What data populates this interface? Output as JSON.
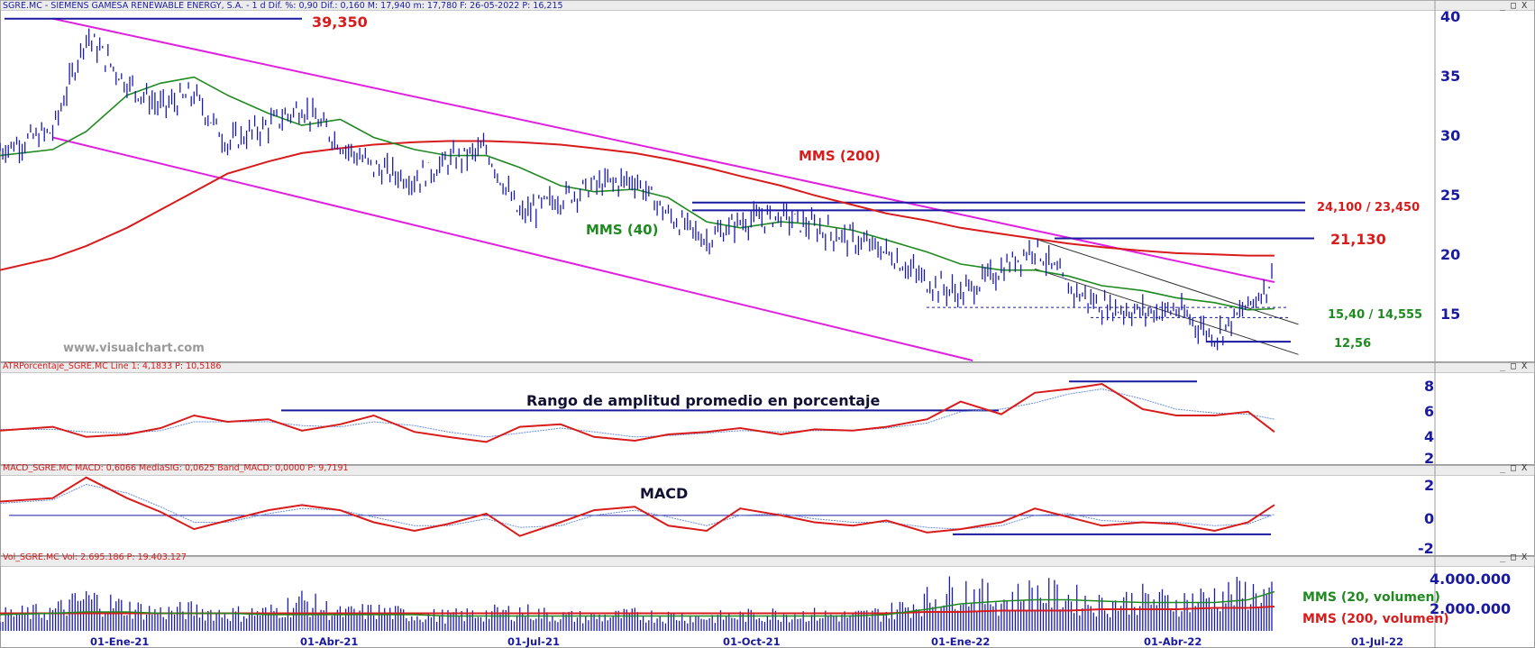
{
  "panels": {
    "price": {
      "header": "SGRE.MC - SIEMENS GAMESA RENEWABLE ENERGY, S.A. - 1 d  Dif. %: 0,90  Dif.: 0,160  M: 17,940  m: 17,780  F: 26-05-2022  P: 16,215",
      "y_ticks": [
        "40",
        "35",
        "30",
        "25",
        "20",
        "15"
      ],
      "watermark": "www.visualchart.com"
    },
    "atr": {
      "header": "ATRPorcentaje_SGRE.MC  Line 1: 4,1833  P: 10,5186",
      "y_ticks": [
        "8",
        "6",
        "4",
        "2"
      ],
      "title": "Rango de amplitud promedio en porcentaje"
    },
    "macd": {
      "header": "MACD_SGRE.MC  MACD: 0,6066  MediaSIG: 0,0625  Band_MACD: 0,0000  P: 9,7191",
      "y_ticks": [
        "2",
        "0",
        "-2"
      ],
      "title": "MACD"
    },
    "volume": {
      "header": "Vol_SGRE.MC  Vol: 2.695.186  P: 19.403.127",
      "y_ticks": [
        "4.000.000",
        "2.000.000"
      ]
    }
  },
  "x_axis": [
    "01-Ene-21",
    "01-Abr-21",
    "01-Jul-21",
    "01-Oct-21",
    "01-Ene-22",
    "01-Abr-22",
    "01-Jul-22"
  ],
  "annotations": {
    "max_level": "39,350",
    "mms200": "MMS (200)",
    "mms40": "MMS (40)",
    "resistance_band": "24,100 / 23,450",
    "resistance": "21,130",
    "support_band": "15,40 / 14,555",
    "low": "12,56",
    "vol_mms20": "MMS (20, volumen)",
    "vol_mms200": "MMS (200, volumen)"
  },
  "window_buttons": "_ □ X",
  "colors": {
    "price_bars": "#1a1ab4",
    "mms40": "#1f8a1f",
    "mms200": "#d81b1b",
    "channel": "#e020e0",
    "levels": "#1a1aa0",
    "atr_line": "#d81b1b",
    "atr_signal": "#6b8fd6",
    "macd_line": "#d81b1b",
    "macd_signal": "#6b8fd6",
    "volume_bars": "#1a1ab4",
    "axis_text": "#1a1aa0",
    "annotation_red": "#d81b1b",
    "annotation_green": "#1f8a1f"
  },
  "chart_data": {
    "type": "line",
    "title": "",
    "instrument": "SGRE.MC",
    "x": [
      "2020-12-10",
      "2021-01-01",
      "2021-01-15",
      "2021-02-01",
      "2021-02-15",
      "2021-03-01",
      "2021-03-15",
      "2021-04-01",
      "2021-04-15",
      "2021-05-01",
      "2021-05-15",
      "2021-06-01",
      "2021-06-15",
      "2021-07-01",
      "2021-07-15",
      "2021-08-01",
      "2021-08-15",
      "2021-09-01",
      "2021-09-15",
      "2021-10-01",
      "2021-10-15",
      "2021-11-01",
      "2021-11-15",
      "2021-12-01",
      "2021-12-15",
      "2022-01-01",
      "2022-01-15",
      "2022-02-01",
      "2022-02-15",
      "2022-03-01",
      "2022-03-15",
      "2022-04-01",
      "2022-04-15",
      "2022-05-01",
      "2022-05-15",
      "2022-05-26"
    ],
    "series": [
      {
        "name": "SGRE.MC",
        "values": [
          28.5,
          30.0,
          38.0,
          34.0,
          32.0,
          33.0,
          29.0,
          30.5,
          32.0,
          29.0,
          27.0,
          26.0,
          27.5,
          28.5,
          23.0,
          24.5,
          25.5,
          26.0,
          23.0,
          21.0,
          22.5,
          23.0,
          22.0,
          21.0,
          20.0,
          17.5,
          16.5,
          18.5,
          20.5,
          17.0,
          15.5,
          15.0,
          15.2,
          13.0,
          15.5,
          17.9
        ]
      },
      {
        "name": "MMS (40)",
        "values": [
          28.0,
          28.5,
          30.0,
          33.0,
          34.0,
          34.5,
          33.0,
          31.5,
          30.5,
          31.0,
          29.5,
          28.5,
          28.0,
          28.0,
          27.0,
          25.5,
          25.0,
          25.2,
          24.5,
          22.5,
          22.0,
          22.5,
          22.3,
          21.8,
          21.0,
          20.0,
          19.0,
          18.5,
          18.5,
          18.0,
          17.2,
          16.8,
          16.2,
          15.8,
          15.2,
          15.3
        ]
      },
      {
        "name": "MMS (200)",
        "values": [
          18.5,
          19.5,
          20.5,
          22.0,
          23.5,
          25.0,
          26.5,
          27.5,
          28.2,
          28.6,
          28.9,
          29.1,
          29.2,
          29.2,
          29.1,
          28.9,
          28.6,
          28.2,
          27.7,
          27.0,
          26.3,
          25.5,
          24.7,
          23.9,
          23.2,
          22.6,
          22.0,
          21.5,
          21.1,
          20.7,
          20.4,
          20.1,
          19.9,
          19.8,
          19.7,
          19.7
        ]
      }
    ],
    "ylim": [
      11,
      40
    ],
    "yticks": [
      15,
      20,
      25,
      30,
      35,
      40
    ],
    "levels": [
      39.35,
      24.1,
      23.45,
      21.13,
      15.4,
      14.555,
      12.56
    ],
    "sub_panels": [
      {
        "name": "ATRPorcentaje_SGRE.MC",
        "type": "line",
        "ylim": [
          2,
          9
        ],
        "yticks": [
          2,
          4,
          6,
          8
        ],
        "series": [
          {
            "name": "Line 1",
            "values": [
              4.3,
              4.6,
              3.8,
              4.0,
              4.5,
              5.5,
              5.0,
              5.2,
              4.3,
              4.8,
              5.5,
              4.2,
              3.8,
              3.4,
              4.6,
              4.8,
              3.8,
              3.5,
              4.0,
              4.2,
              4.5,
              4.0,
              4.4,
              4.3,
              4.6,
              5.2,
              6.6,
              5.6,
              7.3,
              7.6,
              8.0,
              6.0,
              5.5,
              5.5,
              5.8,
              4.2
            ]
          },
          {
            "values": [
              4.4,
              4.4,
              4.2,
              4.1,
              4.3,
              5.0,
              5.0,
              5.0,
              4.7,
              4.6,
              5.0,
              4.7,
              4.2,
              3.8,
              4.1,
              4.5,
              4.2,
              3.8,
              3.9,
              4.1,
              4.3,
              4.2,
              4.3,
              4.3,
              4.5,
              4.9,
              5.8,
              6.0,
              6.5,
              7.2,
              7.6,
              6.8,
              6.0,
              5.7,
              5.6,
              5.2
            ]
          }
        ]
      },
      {
        "name": "MACD_SGRE.MC",
        "type": "line",
        "ylim": [
          -2,
          2.4
        ],
        "yticks": [
          -2,
          0,
          2
        ],
        "levels": [
          0
        ],
        "series": [
          {
            "name": "MACD",
            "values": [
              0.8,
              1.0,
              2.2,
              1.0,
              0.2,
              -0.8,
              -0.3,
              0.3,
              0.6,
              0.3,
              -0.4,
              -0.9,
              -0.5,
              0.1,
              -1.2,
              -0.4,
              0.3,
              0.5,
              -0.6,
              -0.9,
              0.4,
              0.0,
              -0.4,
              -0.6,
              -0.3,
              -1.0,
              -0.8,
              -0.4,
              0.4,
              -0.1,
              -0.6,
              -0.4,
              -0.5,
              -0.9,
              -0.4,
              0.61
            ]
          },
          {
            "name": "MediaSIG",
            "values": [
              0.7,
              0.9,
              1.8,
              1.3,
              0.5,
              -0.4,
              -0.4,
              0.1,
              0.4,
              0.3,
              -0.1,
              -0.6,
              -0.6,
              -0.2,
              -0.7,
              -0.6,
              0.0,
              0.3,
              -0.1,
              -0.6,
              0.0,
              0.1,
              -0.2,
              -0.4,
              -0.4,
              -0.7,
              -0.8,
              -0.6,
              0.0,
              0.1,
              -0.3,
              -0.4,
              -0.4,
              -0.6,
              -0.5,
              0.06
            ]
          }
        ]
      },
      {
        "name": "Vol_SGRE.MC",
        "type": "bar",
        "ylim": [
          0,
          5000000
        ],
        "yticks": [
          2000000,
          4000000
        ],
        "volume": [
          1.3,
          1.6,
          2.6,
          1.9,
          1.5,
          1.7,
          1.4,
          1.5,
          2.4,
          1.4,
          1.6,
          1.3,
          1.2,
          1.4,
          1.6,
          1.2,
          1.1,
          1.3,
          1.2,
          1.1,
          1.2,
          1.4,
          1.3,
          1.2,
          1.5,
          2.5,
          3.4,
          2.4,
          3.1,
          2.7,
          2.1,
          2.6,
          2.3,
          2.8,
          3.1,
          2.7
        ],
        "series": [
          {
            "name": "MMS (20, volumen)",
            "values": [
              1.2,
              1.3,
              1.4,
              1.4,
              1.3,
              1.3,
              1.3,
              1.2,
              1.2,
              1.2,
              1.2,
              1.2,
              1.1,
              1.1,
              1.1,
              1.1,
              1.1,
              1.1,
              1.1,
              1.1,
              1.1,
              1.1,
              1.1,
              1.1,
              1.2,
              1.6,
              2.0,
              2.2,
              2.3,
              2.3,
              2.2,
              2.1,
              2.1,
              2.1,
              2.3,
              2.9
            ]
          },
          {
            "name": "MMS (200, volumen)",
            "values": [
              1.3,
              1.3,
              1.3,
              1.3,
              1.3,
              1.3,
              1.3,
              1.3,
              1.3,
              1.3,
              1.3,
              1.3,
              1.3,
              1.3,
              1.3,
              1.3,
              1.3,
              1.3,
              1.3,
              1.3,
              1.3,
              1.3,
              1.3,
              1.3,
              1.3,
              1.4,
              1.4,
              1.5,
              1.5,
              1.5,
              1.6,
              1.6,
              1.6,
              1.7,
              1.7,
              1.8
            ]
          }
        ]
      }
    ]
  }
}
